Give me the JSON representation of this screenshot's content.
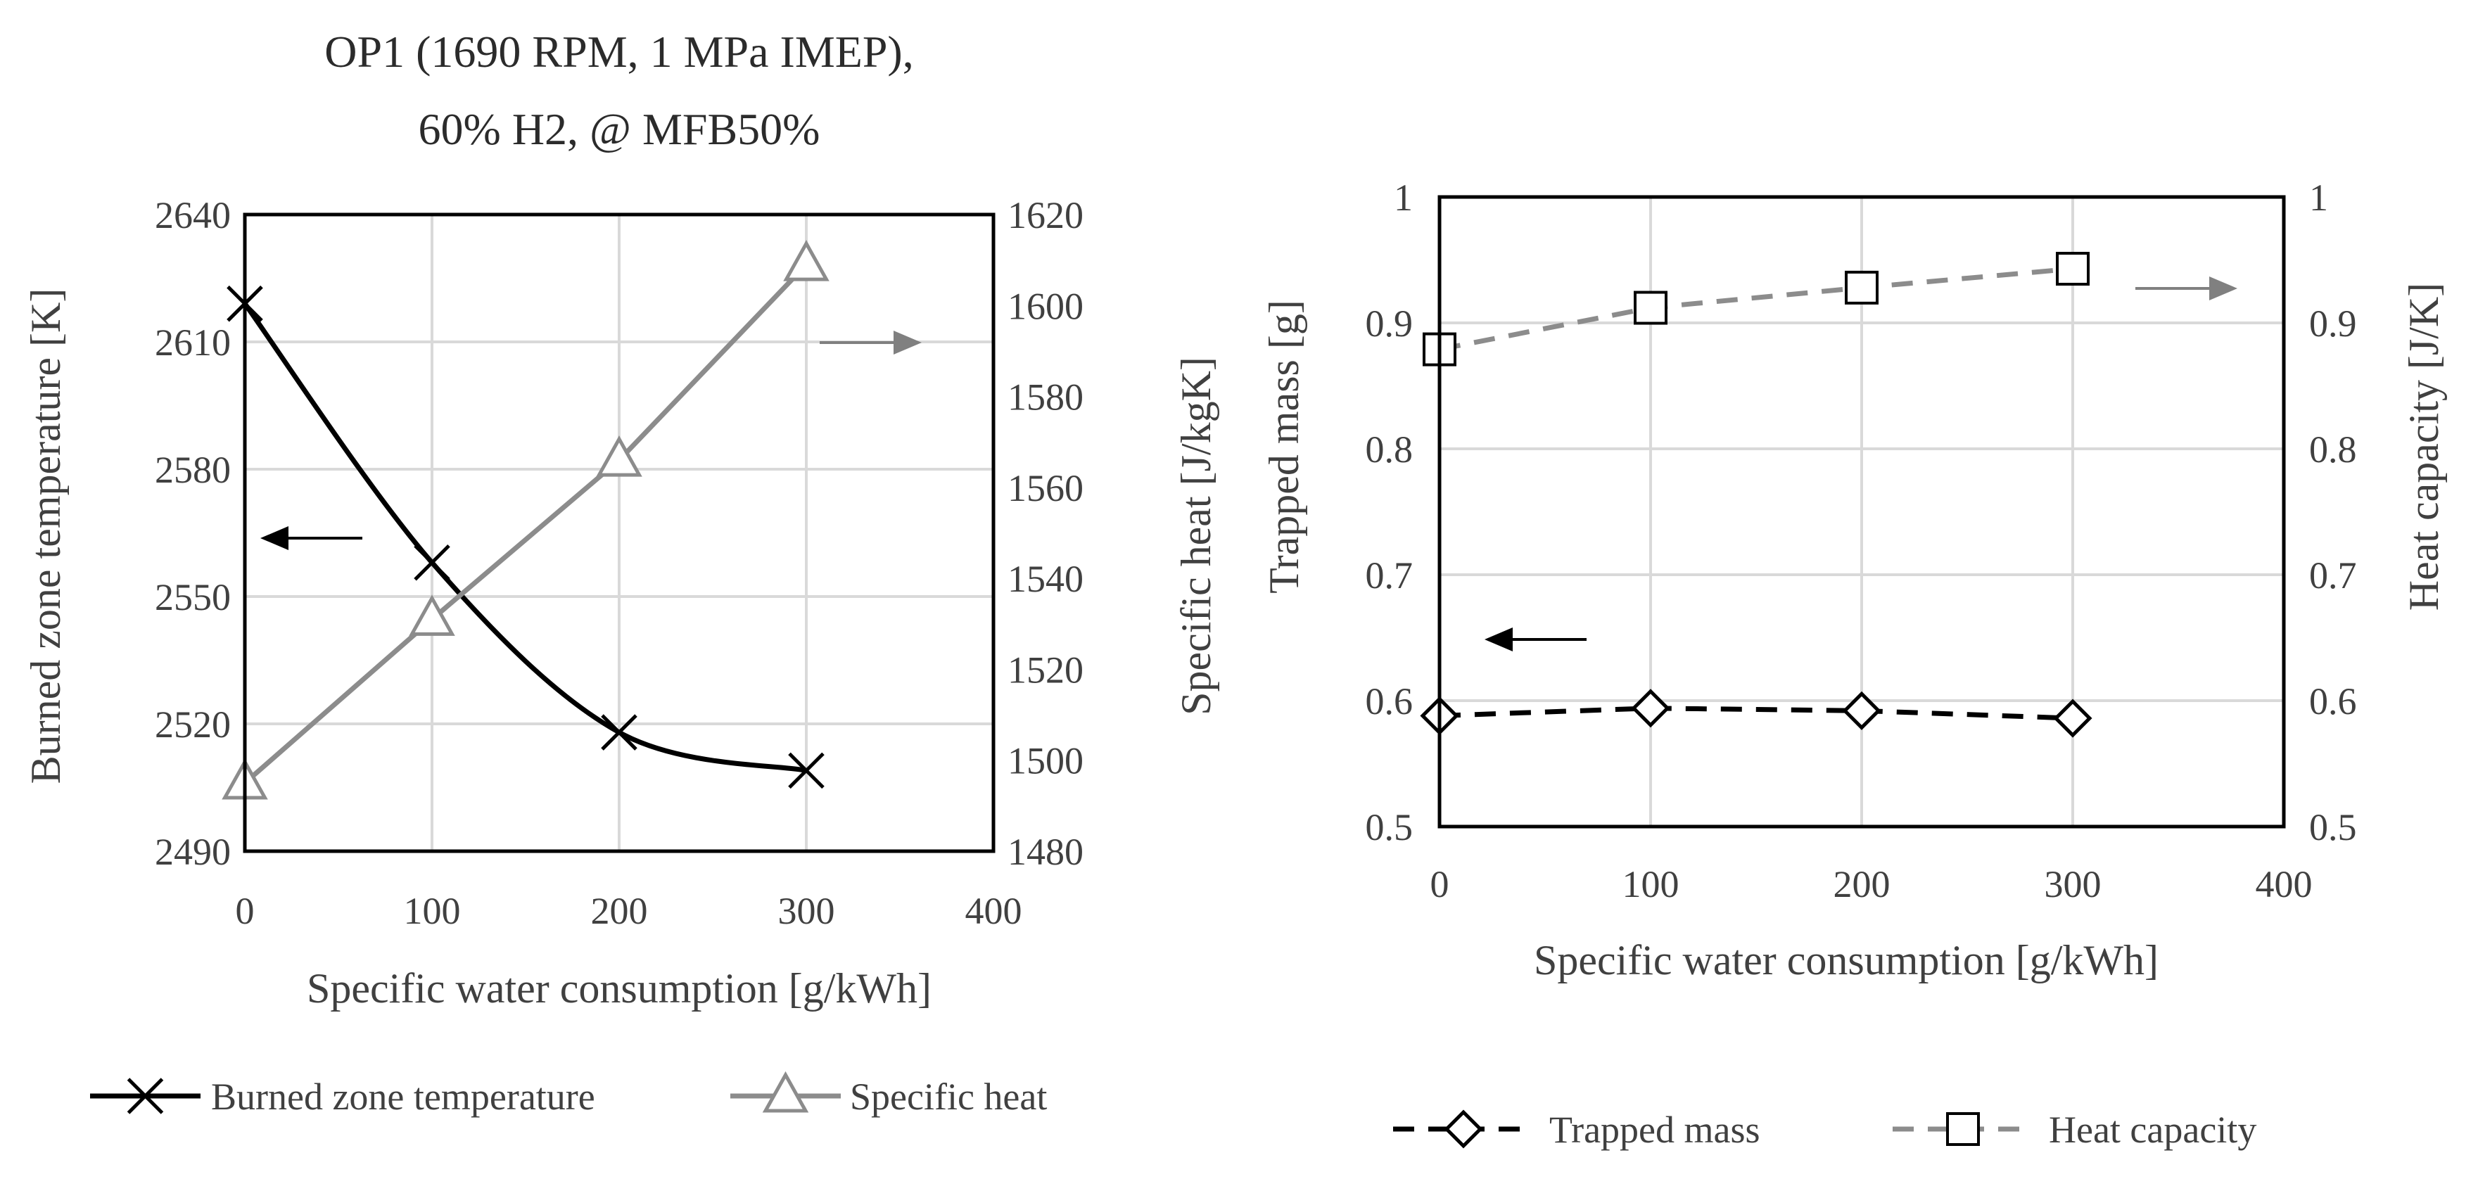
{
  "chart_data": [
    {
      "type": "line",
      "title_lines": [
        "OP1 (1690 RPM, 1 MPa IMEP),",
        "60% H2, @ MFB50%"
      ],
      "xlabel": "Specific water consumption [g/kWh]",
      "ylabel": "Burned zone temperature [K]",
      "y2label": "Specific heat [J/kgK]",
      "xlim": [
        0,
        400
      ],
      "xticks": [
        0,
        100,
        200,
        300,
        400
      ],
      "ylim": [
        2490,
        2640
      ],
      "yticks": [
        2490,
        2520,
        2550,
        2580,
        2610,
        2640
      ],
      "y2lim": [
        1480,
        1620
      ],
      "y2ticks": [
        1480,
        1500,
        1520,
        1540,
        1560,
        1580,
        1600,
        1620
      ],
      "grid": true,
      "legend_position": "bottom",
      "series": [
        {
          "name": "Burned zone temperature",
          "axis": "left",
          "x": [
            0,
            100,
            200,
            300
          ],
          "y": [
            2619,
            2558,
            2518,
            2509
          ],
          "marker": "x",
          "dash": "solid",
          "color": "#000000",
          "smooth": true
        },
        {
          "name": "Specific heat",
          "axis": "right",
          "x": [
            0,
            100,
            200,
            300
          ],
          "y": [
            1495,
            1531,
            1566,
            1609
          ],
          "marker": "triangle",
          "dash": "solid",
          "color": "#8c8c8c",
          "smooth": false
        }
      ],
      "annotations": [
        {
          "type": "arrow",
          "direction": "left",
          "color": "#000000",
          "points_to": "left-axis"
        },
        {
          "type": "arrow",
          "direction": "right",
          "color": "#808080",
          "points_to": "right-axis"
        }
      ]
    },
    {
      "type": "line",
      "xlabel": "Specific water consumption [g/kWh]",
      "ylabel": "Trapped mass [g]",
      "y2label": "Heat capacity [J/K]",
      "xlim": [
        0,
        400
      ],
      "xticks": [
        0,
        100,
        200,
        300,
        400
      ],
      "ylim": [
        0.5,
        1
      ],
      "yticks": [
        0.5,
        0.6,
        0.7,
        0.8,
        0.9,
        1
      ],
      "y2lim": [
        0.5,
        1
      ],
      "y2ticks": [
        0.5,
        0.6,
        0.7,
        0.8,
        0.9,
        1
      ],
      "grid": true,
      "legend_position": "bottom",
      "series": [
        {
          "name": "Trapped mass",
          "axis": "left",
          "x": [
            0,
            100,
            200,
            300
          ],
          "y": [
            0.588,
            0.594,
            0.592,
            0.586
          ],
          "marker": "diamond",
          "dash": "dashed",
          "color": "#000000",
          "smooth": false
        },
        {
          "name": "Heat capacity",
          "axis": "right",
          "x": [
            0,
            100,
            200,
            300
          ],
          "y": [
            0.879,
            0.912,
            0.928,
            0.943
          ],
          "marker": "square",
          "dash": "dashed",
          "color": "#8c8c8c",
          "smooth": false
        }
      ],
      "annotations": [
        {
          "type": "arrow",
          "direction": "left",
          "color": "#000000",
          "points_to": "left-axis"
        },
        {
          "type": "arrow",
          "direction": "right",
          "color": "#808080",
          "points_to": "right-axis"
        }
      ]
    }
  ]
}
